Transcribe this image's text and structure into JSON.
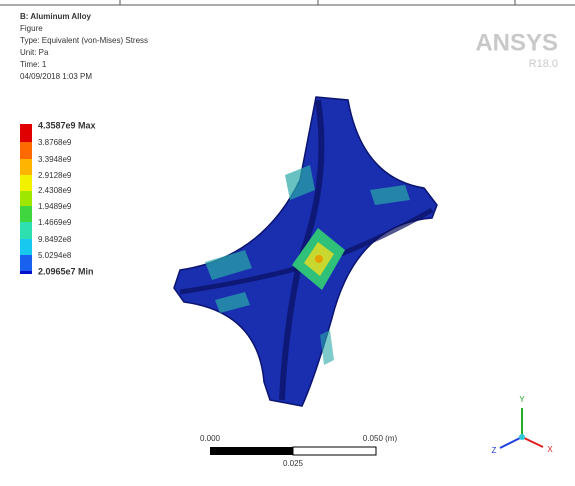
{
  "header": {
    "lines": [
      "B: Aluminum Alloy",
      "Figure",
      "Type: Equivalent (von-Mises) Stress",
      "Unit: Pa",
      "Time: 1",
      "04/09/2018 1:03 PM"
    ]
  },
  "logo": {
    "name": "ANSYS",
    "version": "R18.0"
  },
  "legend": {
    "labels": [
      "4.3587e9 Max",
      "3.8768e9",
      "3.3948e9",
      "2.9128e9",
      "2.4308e9",
      "1.9489e9",
      "1.4669e9",
      "9.8492e8",
      "5.0294e8",
      "2.0965e7 Min"
    ]
  },
  "scale_bar": {
    "left": "0.000",
    "right": "0.050 (m)",
    "middle": "0.025"
  },
  "triad": {
    "x": "X",
    "y": "Y",
    "z": "Z"
  }
}
